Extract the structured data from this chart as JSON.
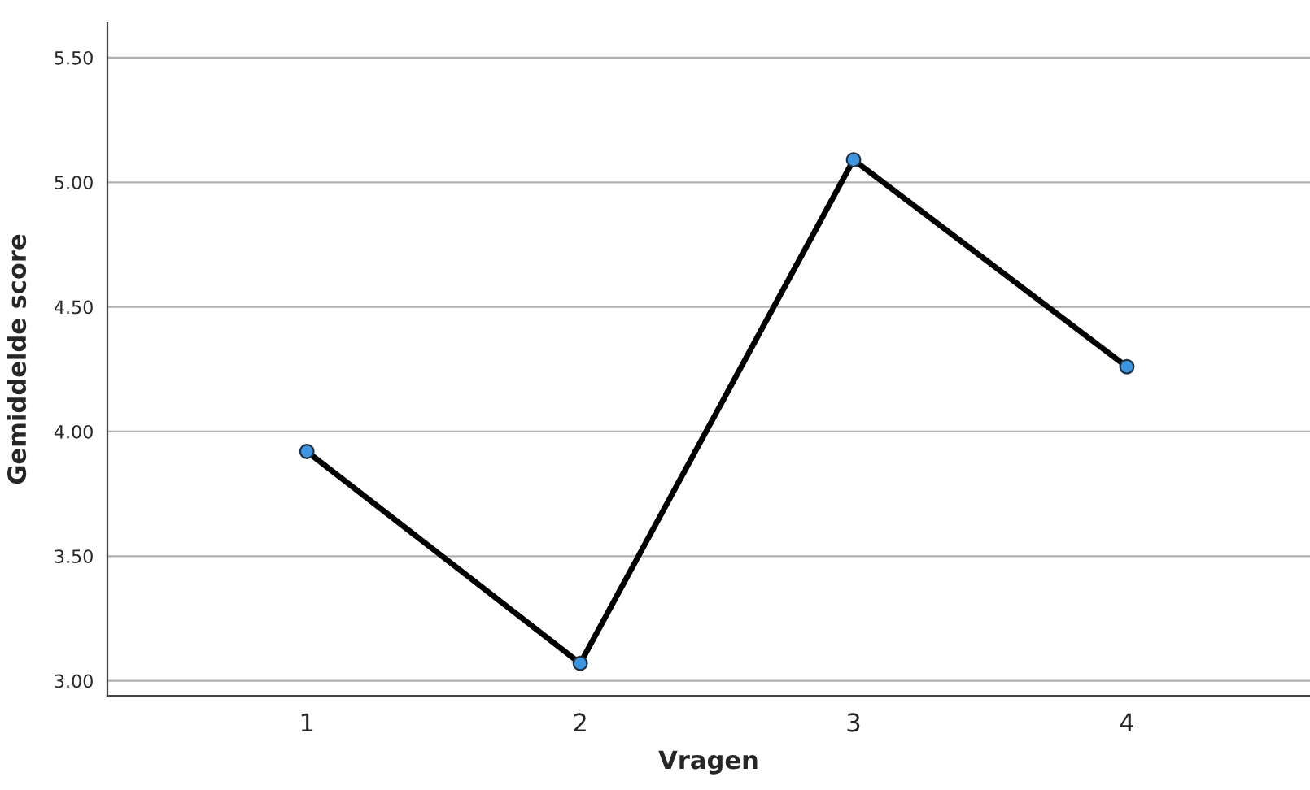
{
  "chart_data": {
    "type": "line",
    "xlabel": "Vragen",
    "ylabel": "Gemiddelde score",
    "categories": [
      "1",
      "2",
      "3",
      "4"
    ],
    "series": [
      {
        "color": "#000000",
        "values": [
          3.92,
          3.07,
          5.09,
          4.26
        ]
      }
    ],
    "ylim": [
      2.94,
      5.64
    ],
    "yticks": [
      {
        "value": 3.0,
        "label": "3.00"
      },
      {
        "value": 3.5,
        "label": "3.50"
      },
      {
        "value": 4.0,
        "label": "4.00"
      },
      {
        "value": 4.5,
        "label": "4.50"
      },
      {
        "value": 5.0,
        "label": "5.00"
      },
      {
        "value": 5.5,
        "label": "5.50"
      }
    ],
    "grid": "y",
    "marker": "circle",
    "line_style": "solid",
    "legend": false
  }
}
